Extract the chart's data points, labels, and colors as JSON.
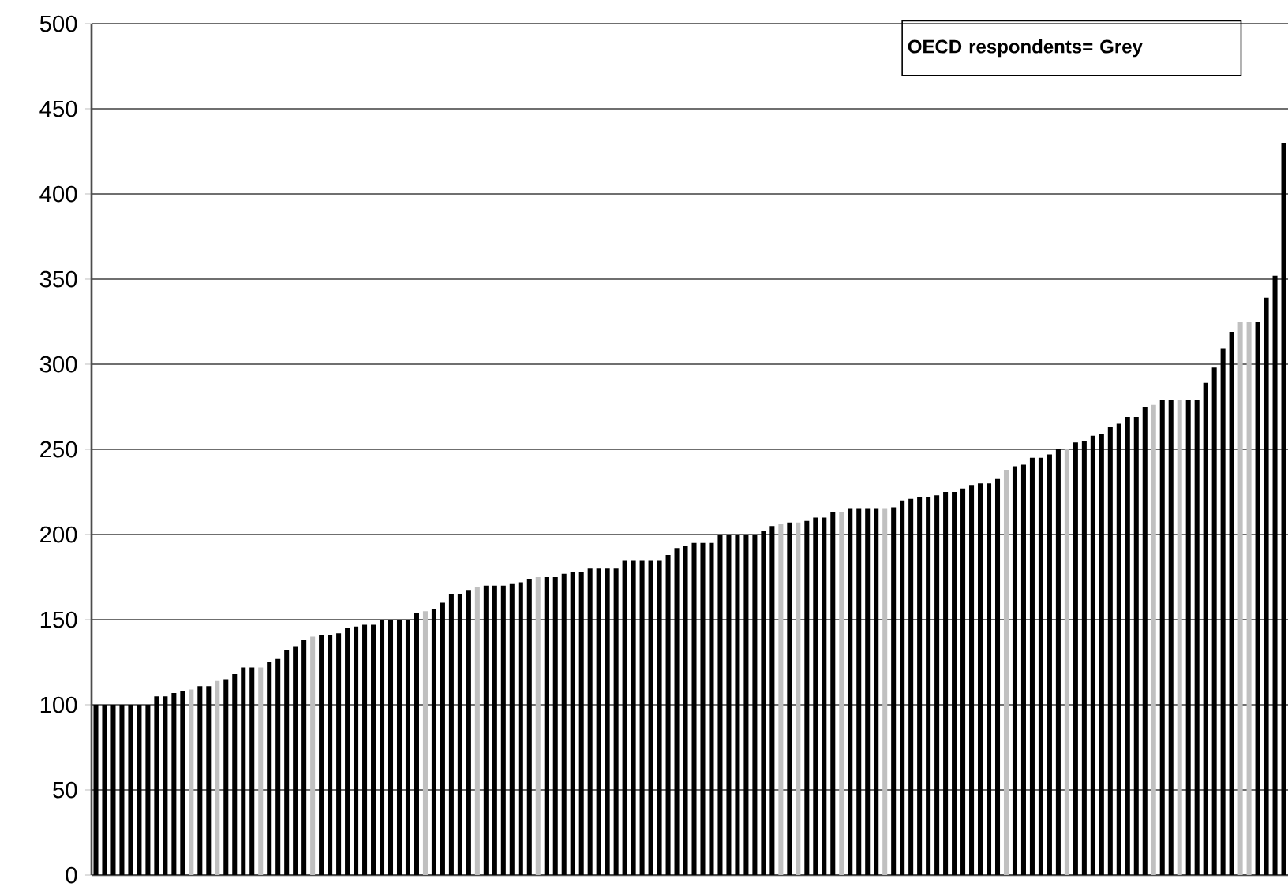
{
  "chart_data": {
    "type": "bar",
    "categories": [
      null,
      null,
      null,
      null,
      null,
      null,
      null,
      null,
      null,
      null,
      null,
      null,
      null,
      null,
      null,
      null,
      null,
      null,
      null,
      null,
      null,
      null,
      null,
      null,
      null,
      null,
      null,
      null,
      null,
      null,
      null,
      null,
      null,
      null,
      null,
      null,
      null,
      null,
      null,
      null,
      null,
      null,
      null,
      null,
      null,
      null,
      null,
      null,
      null,
      null,
      null,
      null,
      null,
      null,
      null,
      null,
      null,
      null,
      null,
      null,
      null,
      null,
      null,
      null,
      null,
      null,
      null,
      null,
      null,
      null,
      null,
      null,
      null,
      null,
      null,
      null,
      null,
      null,
      null,
      null,
      null,
      null,
      null,
      null,
      null,
      null,
      null,
      null,
      null,
      null,
      null,
      null,
      null,
      null,
      null,
      null,
      null,
      null,
      null,
      null,
      null,
      null,
      null,
      null,
      null,
      null,
      null,
      null,
      null,
      null,
      null,
      null,
      null,
      null,
      null,
      null,
      null,
      null,
      null,
      null,
      null,
      null,
      null,
      null,
      null,
      null,
      null,
      null,
      null,
      null,
      null,
      null,
      null,
      null,
      null,
      null,
      null,
      null
    ],
    "values": [
      100,
      100,
      100,
      100,
      100,
      100,
      100,
      105,
      105,
      107,
      108,
      109,
      111,
      111,
      114,
      115,
      118,
      122,
      122,
      122,
      125,
      127,
      132,
      134,
      138,
      140,
      141,
      141,
      142,
      145,
      146,
      147,
      147,
      150,
      150,
      150,
      150,
      154,
      155,
      156,
      160,
      165,
      165,
      167,
      169,
      170,
      170,
      170,
      171,
      172,
      174,
      175,
      175,
      175,
      177,
      178,
      178,
      180,
      180,
      180,
      180,
      185,
      185,
      185,
      185,
      185,
      188,
      192,
      193,
      195,
      195,
      195,
      200,
      200,
      200,
      200,
      200,
      202,
      205,
      206,
      207,
      207,
      208,
      210,
      210,
      213,
      213,
      215,
      215,
      215,
      215,
      215,
      216,
      220,
      221,
      222,
      222,
      223,
      225,
      225,
      227,
      229,
      230,
      230,
      233,
      238,
      240,
      241,
      245,
      245,
      247,
      250,
      250,
      254,
      255,
      258,
      259,
      263,
      265,
      269,
      269,
      275,
      276,
      279,
      279,
      279,
      279,
      279,
      289,
      298,
      309,
      319,
      325,
      325,
      325,
      339,
      352,
      430
    ],
    "colors": [
      "#000000",
      "#000000",
      "#000000",
      "#000000",
      "#000000",
      "#000000",
      "#000000",
      "#000000",
      "#000000",
      "#000000",
      "#000000",
      "#c0c0c0",
      "#000000",
      "#000000",
      "#c0c0c0",
      "#000000",
      "#000000",
      "#000000",
      "#000000",
      "#c0c0c0",
      "#000000",
      "#000000",
      "#000000",
      "#000000",
      "#000000",
      "#c0c0c0",
      "#000000",
      "#000000",
      "#000000",
      "#000000",
      "#000000",
      "#000000",
      "#000000",
      "#000000",
      "#000000",
      "#000000",
      "#000000",
      "#000000",
      "#c0c0c0",
      "#000000",
      "#000000",
      "#000000",
      "#000000",
      "#000000",
      "#c0c0c0",
      "#000000",
      "#000000",
      "#000000",
      "#000000",
      "#000000",
      "#000000",
      "#c0c0c0",
      "#000000",
      "#000000",
      "#000000",
      "#000000",
      "#000000",
      "#000000",
      "#000000",
      "#000000",
      "#000000",
      "#000000",
      "#000000",
      "#000000",
      "#000000",
      "#000000",
      "#000000",
      "#000000",
      "#000000",
      "#000000",
      "#000000",
      "#000000",
      "#000000",
      "#000000",
      "#000000",
      "#000000",
      "#000000",
      "#000000",
      "#000000",
      "#c0c0c0",
      "#000000",
      "#c0c0c0",
      "#000000",
      "#000000",
      "#000000",
      "#000000",
      "#c0c0c0",
      "#000000",
      "#000000",
      "#000000",
      "#000000",
      "#c0c0c0",
      "#000000",
      "#000000",
      "#000000",
      "#000000",
      "#000000",
      "#000000",
      "#000000",
      "#000000",
      "#000000",
      "#000000",
      "#000000",
      "#000000",
      "#000000",
      "#c0c0c0",
      "#000000",
      "#000000",
      "#000000",
      "#000000",
      "#000000",
      "#000000",
      "#c0c0c0",
      "#000000",
      "#000000",
      "#000000",
      "#000000",
      "#000000",
      "#000000",
      "#000000",
      "#000000",
      "#000000",
      "#c0c0c0",
      "#000000",
      "#000000",
      "#c0c0c0",
      "#000000",
      "#000000",
      "#000000",
      "#000000",
      "#000000",
      "#000000",
      "#c0c0c0",
      "#c0c0c0",
      "#000000",
      "#000000",
      "#000000",
      "#000000"
    ],
    "ylim": [
      0,
      500
    ],
    "yticks": [
      0,
      50,
      100,
      150,
      200,
      250,
      300,
      350,
      400,
      450,
      500
    ],
    "grid": "y",
    "tick_labels": "y",
    "annotations": [
      "OECD respondents= Grey"
    ]
  }
}
